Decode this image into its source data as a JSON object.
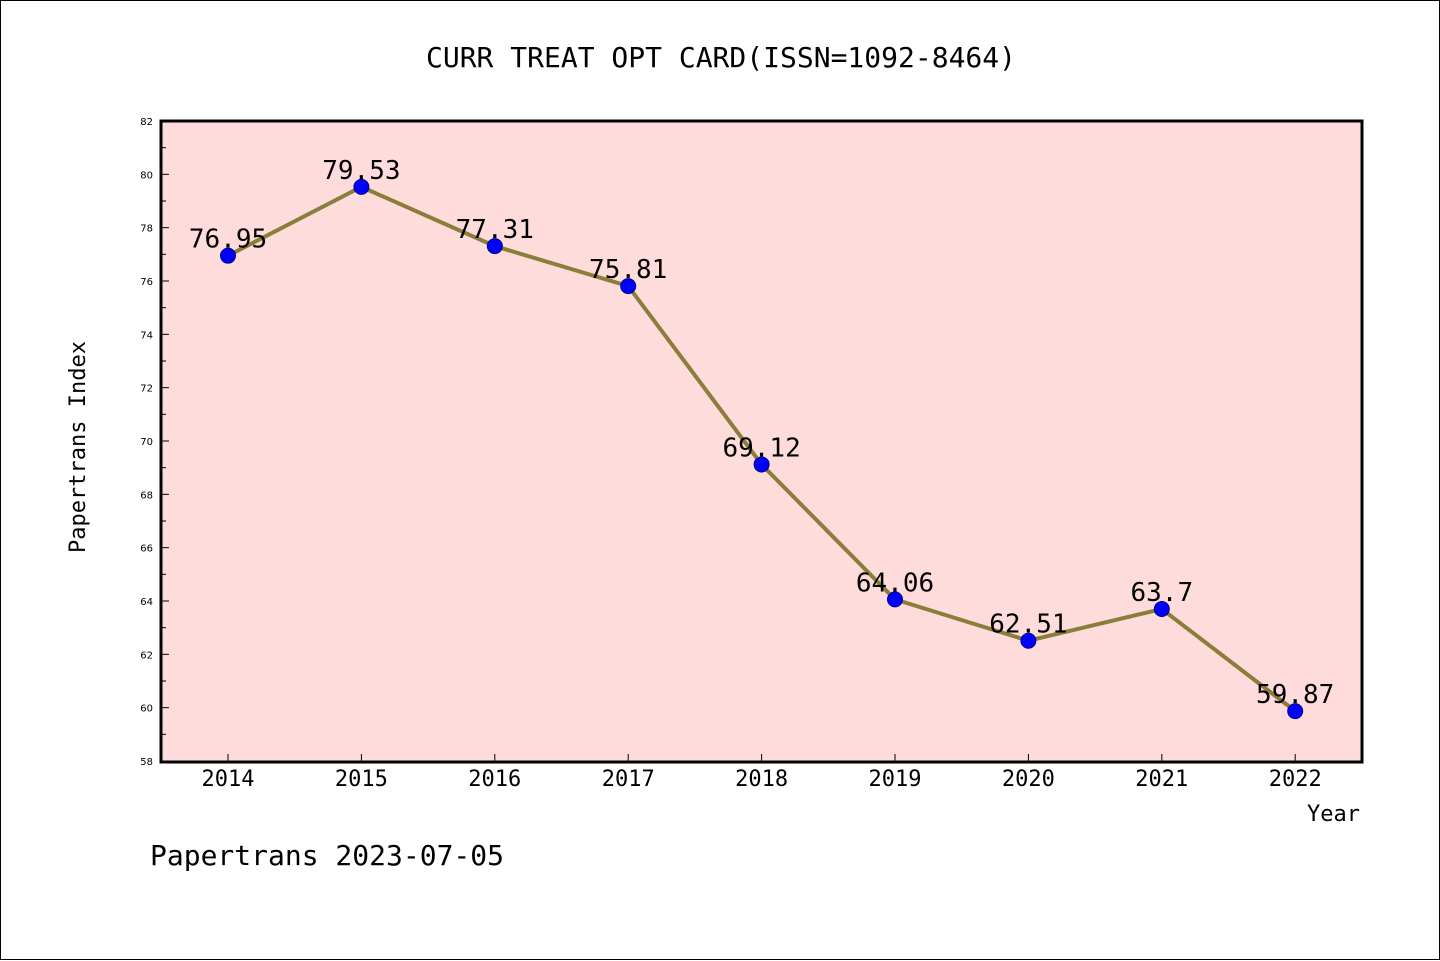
{
  "chart_data": {
    "type": "line",
    "title": "CURR TREAT OPT CARD(ISSN=1092-8464)",
    "xlabel": "Year",
    "ylabel": "Papertrans Index",
    "categories": [
      "2014",
      "2015",
      "2016",
      "2017",
      "2018",
      "2019",
      "2020",
      "2021",
      "2022"
    ],
    "series": [
      {
        "values": [
          76.95,
          79.53,
          77.31,
          75.81,
          69.12,
          64.06,
          62.51,
          63.7,
          59.87
        ],
        "labels": [
          "76.95",
          "79.53",
          "77.31",
          "75.81",
          "69.12",
          "64.06",
          "62.51",
          "63.7",
          "59.87"
        ]
      }
    ],
    "ylim": [
      58,
      82
    ],
    "yticks": [
      "58",
      "60",
      "62",
      "64",
      "66",
      "68",
      "70",
      "72",
      "74",
      "76",
      "78",
      "80",
      "82"
    ],
    "grid": false,
    "colors": {
      "plot_background": "#ffdcdc",
      "line": "#8b7d3a",
      "marker": "#0000ff"
    }
  },
  "footer": "Papertrans 2023-07-05"
}
